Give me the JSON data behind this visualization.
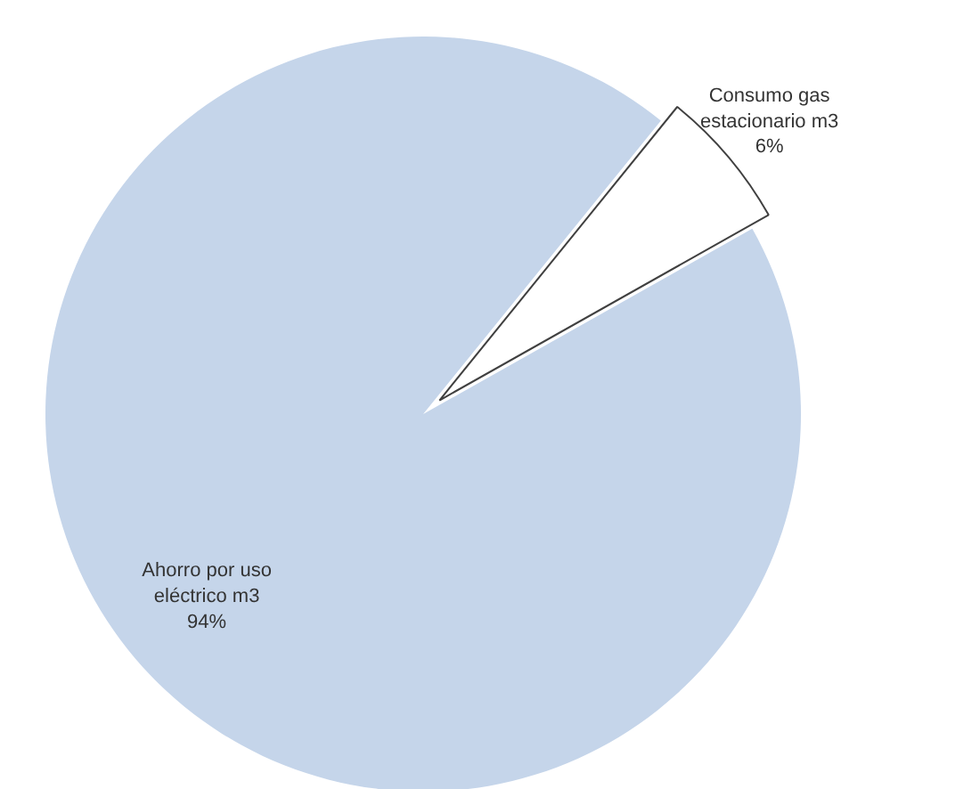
{
  "chart_data": {
    "type": "pie",
    "categories": [
      "Consumo gas estacionario m3",
      "Ahorro por uso eléctrico m3"
    ],
    "values": [
      6,
      94
    ],
    "colors": [
      "#ffffff",
      "#c5d5ea"
    ],
    "value_labels": [
      "6%",
      "94%"
    ]
  }
}
